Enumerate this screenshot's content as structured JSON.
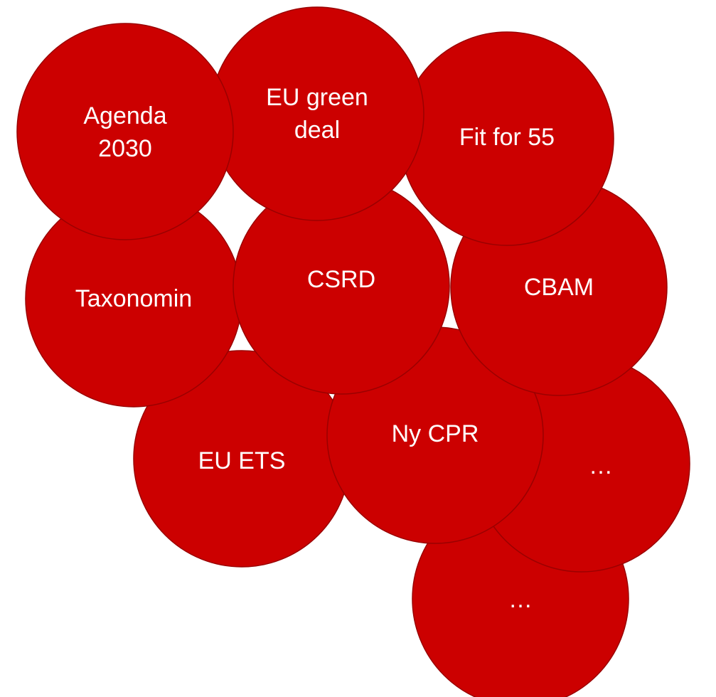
{
  "nodes": [
    {
      "label": [
        "…"
      ]
    },
    {
      "label": [
        "…"
      ]
    },
    {
      "label": [
        "EU ETS"
      ]
    },
    {
      "label": [
        "Ny CPR"
      ]
    },
    {
      "label": [
        "Taxonomin"
      ]
    },
    {
      "label": [
        "CBAM"
      ]
    },
    {
      "label": [
        "CSRD"
      ]
    },
    {
      "label": [
        "Fit for 55"
      ]
    },
    {
      "label": [
        "EU green",
        "deal"
      ]
    },
    {
      "label": [
        "Agenda",
        "2030"
      ]
    }
  ]
}
